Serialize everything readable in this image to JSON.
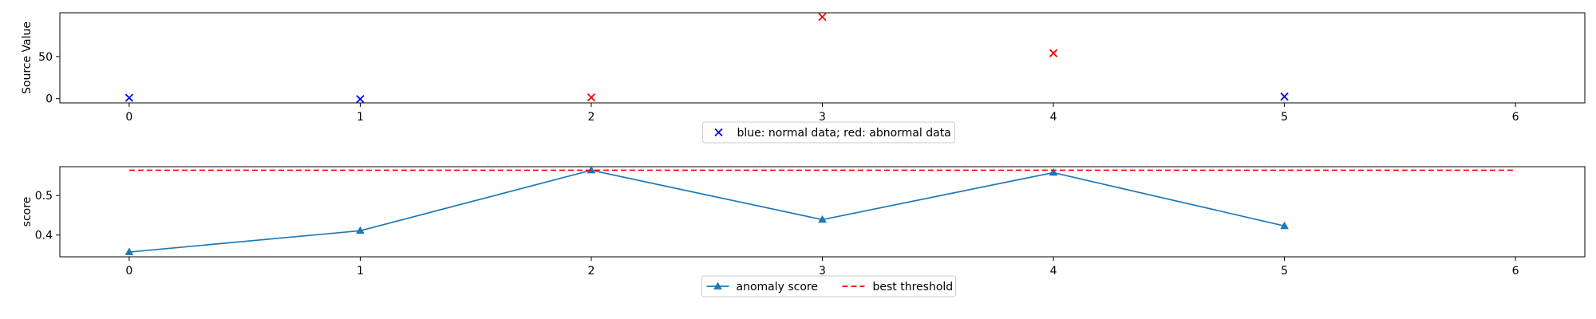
{
  "chart_data": [
    {
      "type": "scatter",
      "ylabel": "Source Value",
      "xlim": [
        -0.3,
        6.3
      ],
      "ylim": [
        -5,
        102
      ],
      "x_ticks": [
        0,
        1,
        2,
        3,
        4,
        5,
        6
      ],
      "y_ticks": [
        0,
        50
      ],
      "legend": {
        "label": "blue: normal data; red: abnormal data",
        "placement": "below"
      },
      "points": [
        {
          "x": 0,
          "y": 1,
          "color": "#0000ff"
        },
        {
          "x": 1,
          "y": -0.5,
          "color": "#0000ff"
        },
        {
          "x": 2,
          "y": 1.5,
          "color": "#ff0000"
        },
        {
          "x": 3,
          "y": 97,
          "color": "#ff0000"
        },
        {
          "x": 4,
          "y": 54,
          "color": "#ff0000"
        },
        {
          "x": 5,
          "y": 2.5,
          "color": "#0000ff"
        }
      ],
      "marker": "x"
    },
    {
      "type": "line",
      "ylabel": "score",
      "xlim": [
        -0.3,
        6.3
      ],
      "ylim": [
        0.345,
        0.573
      ],
      "x_ticks": [
        0,
        1,
        2,
        3,
        4,
        5,
        6
      ],
      "y_ticks": [
        0.4,
        0.5
      ],
      "series": [
        {
          "name": "anomaly score",
          "x": [
            0,
            1,
            2,
            3,
            4,
            5
          ],
          "values": [
            0.357,
            0.411,
            0.564,
            0.439,
            0.558,
            0.423
          ],
          "color": "#1f77b4",
          "marker": "triangle"
        },
        {
          "name": "best threshold",
          "x": [
            0,
            6
          ],
          "values": [
            0.564,
            0.564
          ],
          "color": "#ff0000",
          "style": "dashed"
        }
      ],
      "legend": {
        "placement": "below"
      }
    }
  ]
}
